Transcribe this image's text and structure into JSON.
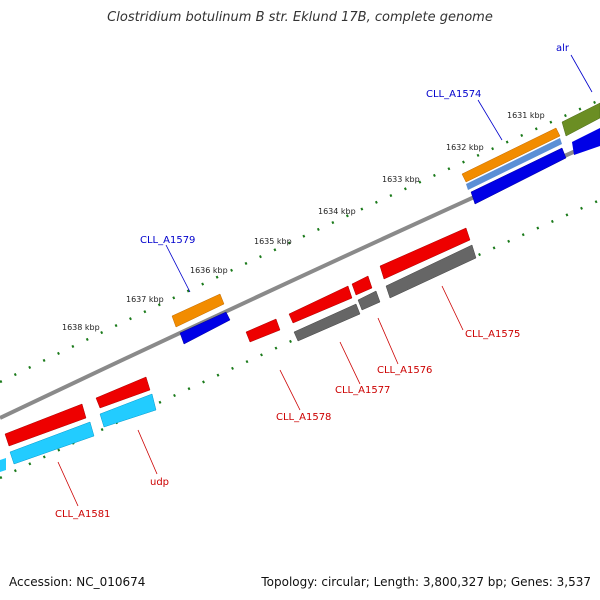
{
  "title": "Clostridium botulinum B str. Eklund 17B, complete genome",
  "footer": {
    "accession": "Accession: NC_010674",
    "summary": "Topology: circular; Length: 3,800,327 bp; Genes: 3,537"
  },
  "colors": {
    "backbone": "#888888",
    "scale": "#1a7a1a",
    "label_forward": "#0000cc",
    "label_reverse": "#cc0000",
    "orange": "#f28c00",
    "blue": "#0000e6",
    "steelblue": "#5b8fd6",
    "olive": "#6b8e23",
    "red": "#ee0000",
    "gray": "#666666",
    "cyan": "#22ccff"
  },
  "kbp_ticks": [
    "1631 kbp",
    "1632 kbp",
    "1633 kbp",
    "1634 kbp",
    "1635 kbp",
    "1636 kbp",
    "1637 kbp",
    "1638 kbp"
  ],
  "gene_labels": {
    "forward": [
      "alr",
      "CLL_A1574",
      "CLL_A1579"
    ],
    "reverse": [
      "CLL_A1575",
      "CLL_A1576",
      "CLL_A1577",
      "CLL_A1578",
      "udp",
      "CLL_A1581"
    ]
  }
}
